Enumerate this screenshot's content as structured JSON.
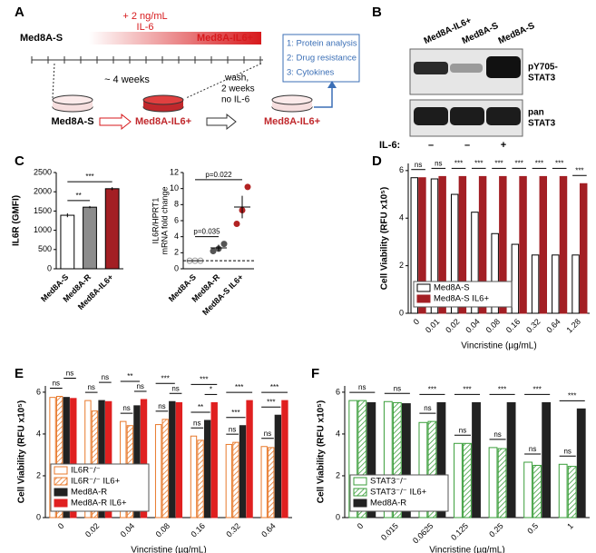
{
  "panel_labels": [
    "A",
    "B",
    "C",
    "D",
    "E",
    "F"
  ],
  "diagram": {
    "start": "Med8A-S",
    "treatment": [
      "+ 2 ng/mL",
      "IL-6"
    ],
    "end": "Med8A-IL6+",
    "duration": "~ 4 weeks",
    "flow": [
      "Med8A-S",
      "Med8A-IL6+",
      "Med8A-IL6+"
    ],
    "wash": [
      "wash,",
      "2 weeks",
      "no IL-6"
    ],
    "analyses": [
      "1: Protein analysis",
      "2: Drug resistance",
      "3: Cytokines"
    ]
  },
  "blot": {
    "lanes": [
      "Med8A-IL6+",
      "Med8A-S",
      "Med8A-S"
    ],
    "bands": [
      [
        "pY705-",
        "STAT3"
      ],
      [
        "pan",
        "STAT3"
      ]
    ],
    "il6_label": "IL-6:",
    "il6": [
      "–",
      "–",
      "+"
    ]
  },
  "chart_data": [
    {
      "type": "bar",
      "ylabel": "IL6R (GMFI)",
      "categories": [
        "Med8A-S",
        "Med8A-R",
        "Med8A-IL6+"
      ],
      "values": [
        1390,
        1600,
        2080
      ],
      "errors": [
        50,
        30,
        40
      ],
      "colors": [
        "#ffffff",
        "#8c8c8c",
        "#a31f24"
      ],
      "ylim": [
        0,
        2500
      ],
      "yticks": [
        0,
        500,
        1000,
        1500,
        2000,
        2500
      ],
      "annotations": [
        {
          "between": [
            0,
            1
          ],
          "label": "**"
        },
        {
          "between": [
            0,
            2
          ],
          "label": "***"
        }
      ]
    },
    {
      "type": "scatter",
      "ylabel": [
        "IL6R/HPRT1",
        "mRNA fold change"
      ],
      "categories": [
        "Med8A-S",
        "Med8A-R",
        "Med8A-S IL6+"
      ],
      "points": [
        [
          1,
          1,
          1
        ],
        [
          2.2,
          2.5,
          3.1
        ],
        [
          5.6,
          7.3,
          10.2
        ]
      ],
      "means": [
        1,
        2.6,
        7.7
      ],
      "errors": [
        0,
        0.4,
        1.4
      ],
      "colors": [
        "#9a9a9a",
        "#555555",
        "#b22222"
      ],
      "hline": 1,
      "ylim": [
        0,
        12
      ],
      "yticks": [
        0,
        2,
        4,
        6,
        8,
        10,
        12
      ],
      "annotations": [
        {
          "between": [
            0,
            1
          ],
          "label": "p=0.035"
        },
        {
          "between": [
            0,
            2
          ],
          "label": "p=0.022"
        }
      ]
    },
    {
      "type": "bar",
      "ylabel": "Cell Viability (RFU x10⁵)",
      "xlabel": "Vincristine (µg/mL)",
      "categories": [
        "0",
        "0.01",
        "0.02",
        "0.04",
        "0.08",
        "0.16",
        "0.32",
        "0.64",
        "1.28"
      ],
      "series": [
        {
          "name": "Med8A-S",
          "color": "#000000",
          "style": "open",
          "values": [
            5.7,
            5.65,
            5.0,
            4.25,
            3.35,
            2.9,
            2.45,
            2.45,
            2.45
          ]
        },
        {
          "name": "Med8A-S IL6+",
          "color": "#a31f24",
          "style": "solid",
          "values": [
            5.7,
            5.75,
            5.75,
            5.75,
            5.75,
            5.75,
            5.75,
            5.75,
            5.45
          ]
        }
      ],
      "ylim": [
        0,
        6.3
      ],
      "yticks": [
        0,
        2,
        4,
        6
      ],
      "legend": "lower left",
      "annotations": [
        {
          "category": 0,
          "between": [
            0,
            1
          ],
          "label": "ns"
        },
        {
          "category": 1,
          "between": [
            0,
            1
          ],
          "label": "ns"
        },
        {
          "category": 2,
          "between": [
            0,
            1
          ],
          "label": "***"
        },
        {
          "category": 3,
          "between": [
            0,
            1
          ],
          "label": "***"
        },
        {
          "category": 4,
          "between": [
            0,
            1
          ],
          "label": "***"
        },
        {
          "category": 5,
          "between": [
            0,
            1
          ],
          "label": "***"
        },
        {
          "category": 6,
          "between": [
            0,
            1
          ],
          "label": "***"
        },
        {
          "category": 7,
          "between": [
            0,
            1
          ],
          "label": "***"
        },
        {
          "category": 8,
          "between": [
            0,
            1
          ],
          "label": "***"
        }
      ]
    },
    {
      "type": "bar",
      "ylabel": "Cell Viability (RFU x10⁵)",
      "xlabel": "Vincristine (µg/mL)",
      "categories": [
        "0",
        "0.02",
        "0.04",
        "0.08",
        "0.16",
        "0.32",
        "0.64"
      ],
      "series": [
        {
          "name": "IL6R⁻/⁻",
          "color": "#e8792b",
          "style": "open",
          "values": [
            5.75,
            5.6,
            4.6,
            4.45,
            3.9,
            3.5,
            3.4
          ]
        },
        {
          "name": "IL6R⁻/⁻ IL6+",
          "color": "#e8792b",
          "style": "hatched",
          "values": [
            5.8,
            5.1,
            4.4,
            4.7,
            3.7,
            3.6,
            3.35
          ]
        },
        {
          "name": "Med8A-R",
          "color": "#222222",
          "style": "solid",
          "values": [
            5.75,
            5.6,
            5.35,
            5.55,
            4.65,
            4.4,
            4.9
          ]
        },
        {
          "name": "Med8A-R IL6+",
          "color": "#e02020",
          "style": "solid",
          "values": [
            5.7,
            5.55,
            5.65,
            5.5,
            5.5,
            5.6,
            5.6
          ]
        }
      ],
      "ylim": [
        0,
        6.3
      ],
      "yticks": [
        0,
        2,
        4,
        6
      ],
      "legend": "lower left",
      "annotations": [
        {
          "category": 0,
          "between": [
            0,
            1
          ],
          "label": "ns"
        },
        {
          "category": 0,
          "between": [
            2,
            3
          ],
          "label": "ns"
        },
        {
          "category": 1,
          "between": [
            0,
            1
          ],
          "label": "ns"
        },
        {
          "category": 1,
          "between": [
            2,
            3
          ],
          "label": "ns"
        },
        {
          "category": 2,
          "between": [
            0,
            1
          ],
          "label": "ns"
        },
        {
          "category": 2,
          "between": [
            2,
            3
          ],
          "label": "ns"
        },
        {
          "category": 2,
          "between": [
            0,
            2
          ],
          "label": "**"
        },
        {
          "category": 3,
          "between": [
            0,
            1
          ],
          "label": "ns"
        },
        {
          "category": 3,
          "between": [
            2,
            3
          ],
          "label": "ns"
        },
        {
          "category": 3,
          "between": [
            0,
            2
          ],
          "label": "***"
        },
        {
          "category": 4,
          "between": [
            0,
            1
          ],
          "label": "ns"
        },
        {
          "category": 4,
          "between": [
            0,
            2
          ],
          "label": "**"
        },
        {
          "category": 4,
          "between": [
            2,
            3
          ],
          "label": "*"
        },
        {
          "category": 4,
          "between": [
            0,
            3
          ],
          "label": "***"
        },
        {
          "category": 5,
          "between": [
            0,
            1
          ],
          "label": "ns"
        },
        {
          "category": 5,
          "between": [
            0,
            2
          ],
          "label": "***"
        },
        {
          "category": 5,
          "between": [
            0,
            3
          ],
          "label": "***"
        },
        {
          "category": 6,
          "between": [
            0,
            1
          ],
          "label": "ns"
        },
        {
          "category": 6,
          "between": [
            0,
            2
          ],
          "label": "***"
        },
        {
          "category": 6,
          "between": [
            0,
            3
          ],
          "label": "***"
        }
      ]
    },
    {
      "type": "bar",
      "ylabel": "Cell Viability (RFU x10⁵)",
      "xlabel": "Vincristine (µg/mL)",
      "categories": [
        "0",
        "0.015",
        "0.0625",
        "0.125",
        "0.25",
        "0.5",
        "1"
      ],
      "series": [
        {
          "name": "STAT3⁻/⁻",
          "color": "#3a9e3a",
          "style": "open",
          "values": [
            5.6,
            5.55,
            4.55,
            3.55,
            3.35,
            2.65,
            2.55
          ]
        },
        {
          "name": "STAT3⁻/⁻ IL6+",
          "color": "#3a9e3a",
          "style": "hatched",
          "values": [
            5.6,
            5.5,
            4.6,
            3.55,
            3.3,
            2.5,
            2.45
          ]
        },
        {
          "name": "Med8A-R",
          "color": "#222222",
          "style": "solid",
          "values": [
            5.5,
            5.45,
            5.5,
            5.5,
            5.5,
            5.5,
            5.2
          ]
        }
      ],
      "ylim": [
        0,
        6.3
      ],
      "yticks": [
        0,
        2,
        4,
        6
      ],
      "legend": "lower left",
      "annotations": [
        {
          "category": 0,
          "between": [
            0,
            2
          ],
          "label": "ns"
        },
        {
          "category": 1,
          "between": [
            0,
            2
          ],
          "label": "ns"
        },
        {
          "category": 2,
          "between": [
            0,
            1
          ],
          "label": "ns"
        },
        {
          "category": 2,
          "between": [
            0,
            2
          ],
          "label": "***"
        },
        {
          "category": 3,
          "between": [
            0,
            1
          ],
          "label": "ns"
        },
        {
          "category": 3,
          "between": [
            0,
            2
          ],
          "label": "***"
        },
        {
          "category": 4,
          "between": [
            0,
            1
          ],
          "label": "ns"
        },
        {
          "category": 4,
          "between": [
            0,
            2
          ],
          "label": "***"
        },
        {
          "category": 5,
          "between": [
            0,
            1
          ],
          "label": "ns"
        },
        {
          "category": 5,
          "between": [
            0,
            2
          ],
          "label": "***"
        },
        {
          "category": 6,
          "between": [
            0,
            1
          ],
          "label": "ns"
        },
        {
          "category": 6,
          "between": [
            0,
            2
          ],
          "label": "***"
        }
      ]
    }
  ]
}
